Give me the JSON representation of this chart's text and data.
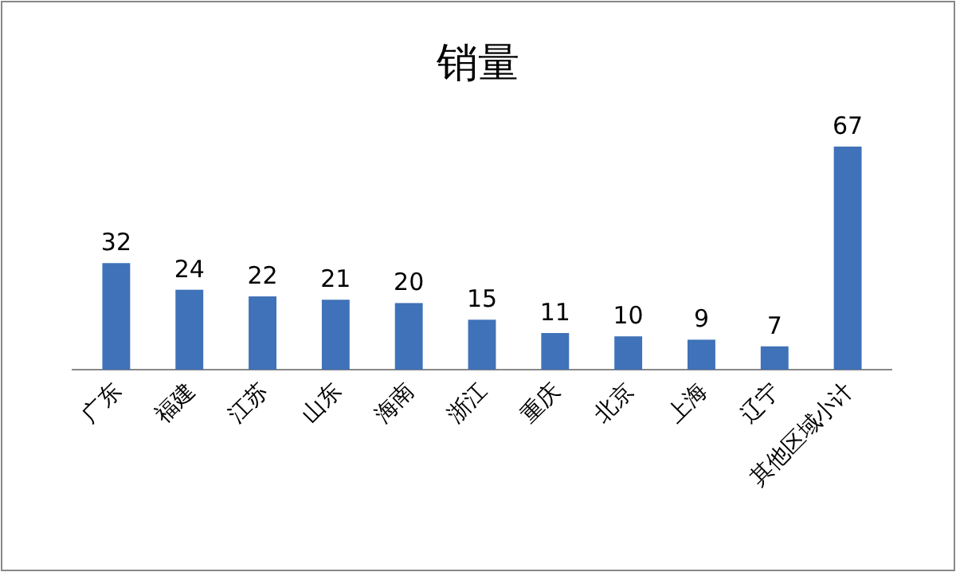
{
  "chart_data": {
    "type": "bar",
    "title": "销量",
    "categories": [
      "广东",
      "福建",
      "江苏",
      "山东",
      "海南",
      "浙江",
      "重庆",
      "北京",
      "上海",
      "辽宁",
      "其他区域小计"
    ],
    "values": [
      32,
      24,
      22,
      21,
      20,
      15,
      11,
      10,
      9,
      7,
      67
    ],
    "color": "#3f72b8",
    "data_labels": true
  }
}
